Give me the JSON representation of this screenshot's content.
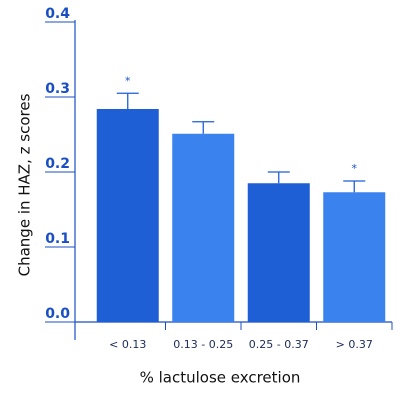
{
  "chart_data": {
    "type": "bar",
    "x_label": "% lactulose excretion",
    "y_label": "Change in HAZ, z scores",
    "categories": [
      "< 0.13",
      "0.13 - 0.25",
      "0.25 - 0.37",
      "> 0.37"
    ],
    "values": [
      0.284,
      0.251,
      0.185,
      0.173
    ],
    "errors": [
      0.021,
      0.016,
      0.015,
      0.015
    ],
    "significance": [
      "*",
      null,
      null,
      "*"
    ],
    "colors": [
      "#1f5fd6",
      "#3a82ee",
      "#1f5fd6",
      "#3a82ee"
    ],
    "ylim": [
      0,
      0.4
    ],
    "yticks": [
      {
        "value": 0,
        "label": "0.0"
      },
      0.1,
      0.2,
      0.3,
      0.4
    ]
  }
}
